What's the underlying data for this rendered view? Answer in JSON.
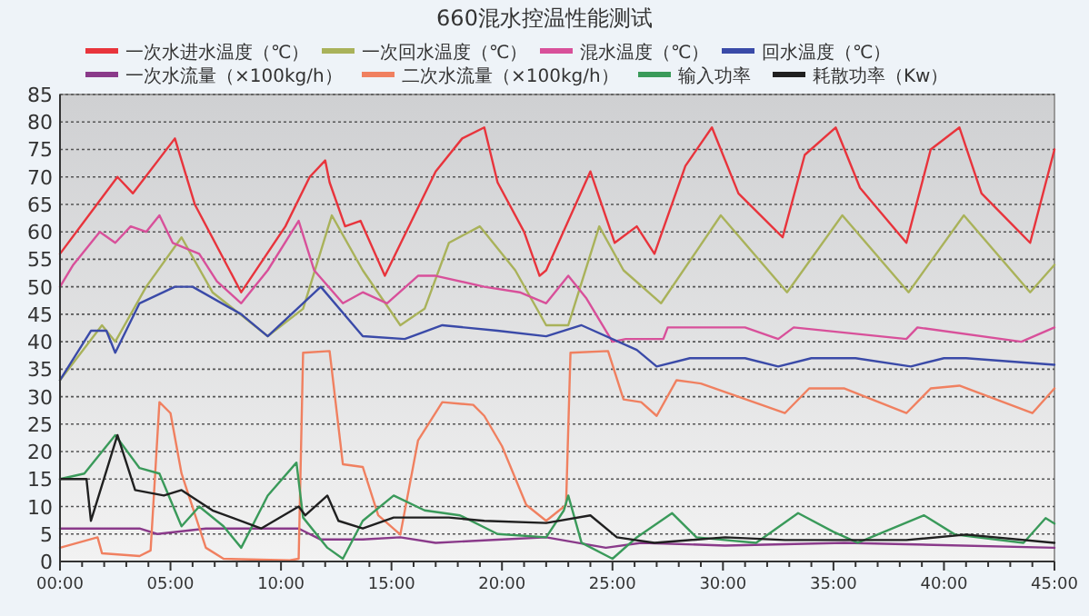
{
  "chart_data": {
    "type": "line",
    "title": "660混水控温性能测试",
    "legend": "top",
    "grid": "y",
    "marker": "none",
    "line_style": "solid",
    "xlim": [
      0,
      45
    ],
    "ylim": [
      0,
      85
    ],
    "yticks": [
      0,
      5,
      10,
      15,
      20,
      25,
      30,
      35,
      40,
      45,
      50,
      55,
      60,
      65,
      70,
      75,
      80,
      85
    ],
    "xticks": [
      {
        "value": 0,
        "label": "00:00"
      },
      {
        "value": 1,
        "label": null
      },
      {
        "value": 2,
        "label": null
      },
      {
        "value": 3,
        "label": null
      },
      {
        "value": 4,
        "label": null
      },
      {
        "value": 5,
        "label": "05:00"
      },
      {
        "value": 6,
        "label": null
      },
      {
        "value": 7,
        "label": null
      },
      {
        "value": 8,
        "label": null
      },
      {
        "value": 9,
        "label": null
      },
      {
        "value": 10,
        "label": "10:00"
      },
      {
        "value": 11,
        "label": null
      },
      {
        "value": 12,
        "label": null
      },
      {
        "value": 13,
        "label": null
      },
      {
        "value": 14,
        "label": null
      },
      {
        "value": 15,
        "label": "15:00"
      },
      {
        "value": 16,
        "label": null
      },
      {
        "value": 17,
        "label": null
      },
      {
        "value": 18,
        "label": null
      },
      {
        "value": 19,
        "label": null
      },
      {
        "value": 20,
        "label": "20:00"
      },
      {
        "value": 21,
        "label": null
      },
      {
        "value": 22,
        "label": null
      },
      {
        "value": 23,
        "label": null
      },
      {
        "value": 24,
        "label": null
      },
      {
        "value": 25,
        "label": "25:00"
      },
      {
        "value": 26,
        "label": null
      },
      {
        "value": 27,
        "label": null
      },
      {
        "value": 28,
        "label": null
      },
      {
        "value": 29,
        "label": null
      },
      {
        "value": 30,
        "label": "30:00"
      },
      {
        "value": 31,
        "label": null
      },
      {
        "value": 32,
        "label": null
      },
      {
        "value": 33,
        "label": null
      },
      {
        "value": 34,
        "label": null
      },
      {
        "value": 35,
        "label": "35:00"
      },
      {
        "value": 36,
        "label": null
      },
      {
        "value": 37,
        "label": null
      },
      {
        "value": 38,
        "label": null
      },
      {
        "value": 39,
        "label": null
      },
      {
        "value": 40,
        "label": "40:00"
      },
      {
        "value": 41,
        "label": null
      },
      {
        "value": 42,
        "label": null
      },
      {
        "value": 43,
        "label": null
      },
      {
        "value": 44,
        "label": null
      },
      {
        "value": 45,
        "label": "45:00"
      }
    ],
    "series": [
      {
        "name": "一次水进水温度（℃）",
        "color": "#e8343c",
        "x": [
          0,
          2.6,
          3.3,
          5.2,
          6.1,
          8.2,
          10.2,
          11.3,
          12,
          12.2,
          12.9,
          13.6,
          14.7,
          17,
          18.2,
          19.2,
          19.8,
          21,
          21.7,
          22,
          24,
          25.1,
          26.1,
          26.9,
          28.3,
          29.5,
          30.7,
          32.7,
          33.7,
          35.1,
          36.2,
          38.3,
          39.4,
          40.7,
          41.7,
          43.9,
          45
        ],
        "values": [
          56,
          70,
          67,
          77,
          65,
          49,
          61,
          70,
          73,
          69,
          61,
          62,
          52,
          71,
          77,
          79,
          69,
          60,
          52,
          53,
          71,
          58,
          61,
          56,
          72,
          79,
          67,
          59,
          74,
          79,
          68,
          58,
          75,
          79,
          67,
          58,
          75
        ]
      },
      {
        "name": "一次回水温度（℃）",
        "color": "#a9b25a",
        "x": [
          0,
          1.9,
          2.5,
          3.9,
          5.5,
          6.9,
          9.4,
          11,
          12.3,
          13.7,
          15.4,
          16.5,
          17.6,
          19,
          20.6,
          22,
          23,
          24.4,
          25.5,
          27.2,
          29.9,
          32.9,
          35.4,
          38.4,
          40.9,
          43.9,
          45
        ],
        "values": [
          33,
          43,
          40,
          50,
          59,
          49,
          41,
          46,
          63,
          53,
          43,
          46,
          58,
          61,
          53,
          43,
          43,
          61,
          53,
          47,
          63,
          49,
          63,
          49,
          63,
          49,
          54
        ]
      },
      {
        "name": "混水温度（℃）",
        "color": "#d8509a",
        "x": [
          0,
          0.6,
          1.8,
          2.5,
          3.2,
          3.9,
          4.5,
          5.1,
          6.3,
          7.1,
          8.2,
          9.4,
          10.8,
          11.5,
          12.8,
          13.7,
          14.8,
          16.2,
          17,
          19.2,
          20.8,
          22,
          23,
          23.8,
          25,
          25.6,
          27.3,
          27.5,
          31,
          32.5,
          33.2,
          38.3,
          38.8,
          43.5,
          45
        ],
        "values": [
          50,
          54,
          60,
          58,
          61,
          60,
          63,
          58,
          56,
          51,
          47,
          53,
          62,
          53,
          47,
          49,
          47,
          52,
          52,
          50,
          49,
          47,
          52,
          48,
          40,
          40.5,
          40.5,
          42.6,
          42.6,
          40.5,
          42.6,
          40.5,
          42.6,
          40,
          42.6
        ]
      },
      {
        "name": "回水温度（℃）",
        "color": "#3a4aa8",
        "x": [
          0,
          1.4,
          2.1,
          2.5,
          3.6,
          5.2,
          6,
          8.2,
          9.4,
          11.8,
          13.7,
          15.6,
          17.3,
          19.8,
          22,
          23.6,
          26.1,
          27,
          28.5,
          31,
          32.5,
          34,
          36,
          38.5,
          40,
          41,
          45
        ],
        "values": [
          33,
          42,
          42,
          38,
          47,
          50,
          50,
          45,
          41,
          50,
          41,
          40.5,
          43,
          42,
          41,
          43,
          38.5,
          35.5,
          37,
          37,
          35.5,
          37,
          37,
          35.5,
          37,
          37,
          35.8
        ]
      },
      {
        "name": "一次水流量（×100kg/h）",
        "color": "#8a3a8a",
        "x": [
          0,
          3.6,
          4.4,
          6.6,
          10.8,
          11.8,
          13.7,
          15.4,
          17,
          20,
          22,
          24.7,
          26.3,
          30.1,
          35.5,
          45
        ],
        "values": [
          6,
          6,
          5,
          6,
          6,
          4,
          4,
          4.4,
          3.4,
          4,
          4.4,
          2.5,
          3.4,
          2.9,
          3.4,
          2.5
        ]
      },
      {
        "name": "二次水流量（×100kg/h）",
        "color": "#f08060",
        "x": [
          0,
          1.7,
          1.9,
          3.6,
          4.1,
          4.5,
          5,
          5.5,
          6.6,
          7.4,
          10.4,
          10.8,
          11,
          12.2,
          12.8,
          13.7,
          14.4,
          15.4,
          16.2,
          17.3,
          18.7,
          19.2,
          20,
          21.1,
          22,
          22.9,
          23.1,
          24.8,
          25.5,
          26.3,
          27,
          27.9,
          29,
          32.8,
          33.9,
          35.5,
          38.3,
          39.4,
          40.7,
          44,
          45
        ],
        "values": [
          2.5,
          4.4,
          1.5,
          1,
          2,
          29,
          27,
          16,
          2.5,
          0.5,
          0.2,
          0.5,
          38,
          38.3,
          17.7,
          17.2,
          8.4,
          4.9,
          22,
          29,
          28.5,
          26.5,
          21,
          10.3,
          7.4,
          10.3,
          38,
          38.3,
          29.5,
          29,
          26.5,
          33,
          32.4,
          27,
          31.5,
          31.5,
          27,
          31.5,
          32,
          27,
          31.5
        ]
      },
      {
        "name": "输入功率",
        "color": "#3a9a5a",
        "x": [
          0,
          1.1,
          2.5,
          3.6,
          4.5,
          5.5,
          6.3,
          7.4,
          8.2,
          9.4,
          10.7,
          11,
          12.1,
          12.8,
          13.7,
          15.1,
          16.5,
          18.1,
          19.8,
          22,
          22.8,
          23,
          23.6,
          25,
          26.1,
          27.7,
          28.8,
          30.1,
          31.5,
          33.4,
          35,
          36.1,
          39.1,
          40.5,
          43.6,
          44.6,
          45
        ],
        "values": [
          15,
          16,
          23,
          17,
          16,
          6.4,
          10,
          6.4,
          2.5,
          12,
          18,
          8,
          2.5,
          0.5,
          7.4,
          12,
          9.3,
          8.4,
          5,
          4.4,
          9.3,
          12,
          3.4,
          0.5,
          4.4,
          8.8,
          4.4,
          3.9,
          3.4,
          8.8,
          5.4,
          3.4,
          8.4,
          4.9,
          3.4,
          7.9,
          6.9
        ]
      },
      {
        "name": "耗散功率（Kw）",
        "color": "#202020",
        "x": [
          0,
          1.2,
          1.4,
          1.6,
          2.6,
          3.4,
          4.7,
          5.5,
          6.9,
          9.1,
          10.8,
          11.1,
          12.1,
          12.6,
          13.7,
          15.1,
          17.6,
          19.2,
          22,
          24,
          25.2,
          26.9,
          30.1,
          32.8,
          35.5,
          38.3,
          41,
          45
        ],
        "values": [
          15,
          15,
          7.4,
          10,
          23,
          13,
          12,
          13,
          9.3,
          6,
          10,
          8.4,
          12,
          7.4,
          6,
          8,
          8,
          7.4,
          7,
          8.4,
          4.4,
          3.4,
          4.4,
          3.9,
          3.9,
          3.9,
          4.9,
          3.4
        ]
      }
    ]
  }
}
